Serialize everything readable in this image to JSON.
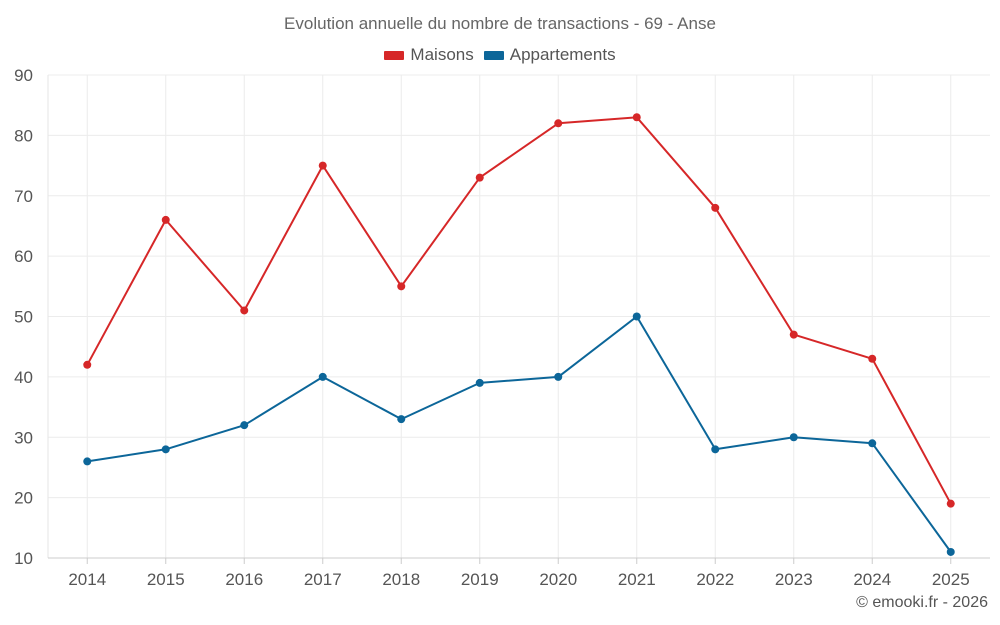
{
  "chart_data": {
    "type": "line",
    "title": "Evolution annuelle du nombre de transactions - 69 - Anse",
    "categories": [
      "2014",
      "2015",
      "2016",
      "2017",
      "2018",
      "2019",
      "2020",
      "2021",
      "2022",
      "2023",
      "2024",
      "2025"
    ],
    "series": [
      {
        "name": "Maisons",
        "color": "#d62728",
        "values": [
          42,
          66,
          51,
          75,
          55,
          73,
          82,
          83,
          68,
          47,
          43,
          19
        ]
      },
      {
        "name": "Appartements",
        "color": "#0c6699",
        "values": [
          26,
          28,
          32,
          40,
          33,
          39,
          40,
          50,
          28,
          30,
          29,
          11
        ]
      }
    ],
    "ylim": [
      10,
      90
    ],
    "yticks": [
      10,
      20,
      30,
      40,
      50,
      60,
      70,
      80,
      90
    ],
    "grid": true,
    "legend_position": "top-center",
    "credit": "© emooki.fr - 2026"
  }
}
